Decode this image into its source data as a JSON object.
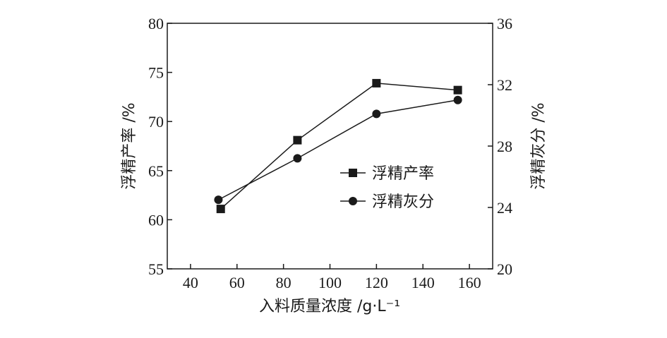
{
  "chart_data": {
    "type": "line",
    "xlabel": "入料质量浓度 /g·L⁻¹",
    "ylabel_left": "浮精产率 /%",
    "ylabel_right": "浮精灰分 /%",
    "xlim": [
      30,
      170
    ],
    "ylim_left": [
      55,
      80
    ],
    "ylim_right": [
      20,
      36
    ],
    "x_ticks": [
      40,
      60,
      80,
      100,
      120,
      140,
      160
    ],
    "y_left_ticks": [
      55,
      60,
      65,
      70,
      75,
      80
    ],
    "y_right_ticks": [
      20,
      24,
      28,
      32,
      36
    ],
    "grid": false,
    "legend_position": "center-right",
    "series": [
      {
        "name": "浮精产率",
        "axis": "left",
        "marker": "square",
        "x": [
          53,
          86,
          120,
          155
        ],
        "y": [
          61.1,
          68.1,
          73.9,
          73.2
        ]
      },
      {
        "name": "浮精灰分",
        "axis": "right",
        "marker": "circle",
        "x": [
          52,
          86,
          120,
          155
        ],
        "y": [
          24.5,
          27.2,
          30.1,
          31.0
        ]
      }
    ]
  }
}
